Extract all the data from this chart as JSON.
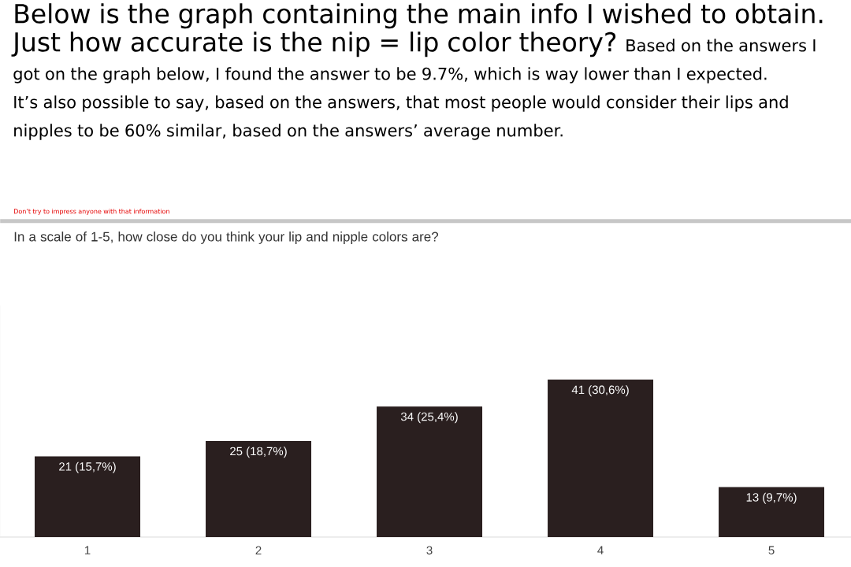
{
  "chart_data": {
    "type": "bar",
    "title": "Below is the graph containing the main info I wished to obtain. Just how accurate is the nip = lip color theory?",
    "subtitle": "In a scale of 1-5, how close do you think your lip and nipple colors are?",
    "annotations": [
      "Based on the answers I got on the graph below, I found the answer to be  9.7%, which is way lower than I expected.",
      "It’s also possible to say, based on the answers, that most people would consider their lips and nipples to be 60% similar, based on the answers’ average number.",
      "Don’t try to impress anyone with that information"
    ],
    "categories": [
      "1",
      "2",
      "3",
      "4",
      "5"
    ],
    "values": [
      21,
      25,
      34,
      41,
      13
    ],
    "value_labels": [
      "21 (15,7%)",
      "25 (18,7%)",
      "34 (25,4%)",
      "41 (30,6%)",
      "13 (9,7%)"
    ],
    "color": "#2a1f1f",
    "tick_labels": "x"
  }
}
